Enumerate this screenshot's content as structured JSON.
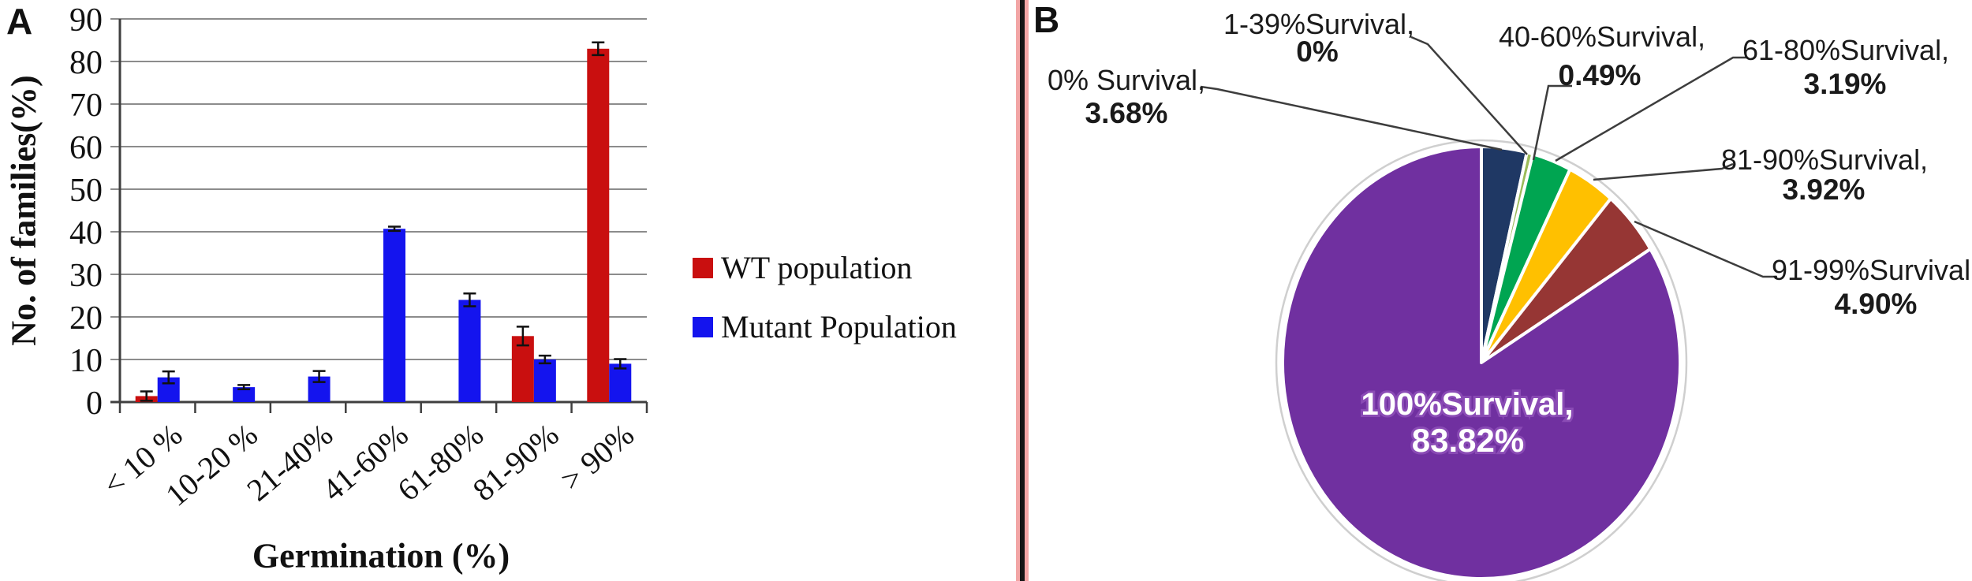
{
  "figure": {
    "panel_a": {
      "label": "A",
      "chart_data": {
        "type": "bar",
        "xlabel": "Germination  (%)",
        "ylabel": "No. of families(%)",
        "ylim": [
          0,
          90
        ],
        "ytick_step": 10,
        "grid": true,
        "legend_position": "right",
        "categories": [
          "< 10 %",
          "10-20 %",
          "21-40%",
          "41-60%",
          "61-80%",
          "81-90%",
          "> 90%"
        ],
        "series": [
          {
            "name": "WT population",
            "color": "#c90f0f",
            "values": [
              1.4,
              0,
              0,
              0,
              0,
              15.5,
              83
            ],
            "errors": [
              1.1,
              0,
              0,
              0,
              0,
              2.2,
              1.5
            ]
          },
          {
            "name": "Mutant Population",
            "color": "#1414ee",
            "values": [
              5.8,
              3.5,
              6,
              40.7,
              24,
              10,
              9
            ],
            "errors": [
              1.4,
              0.5,
              1.3,
              0.5,
              1.5,
              0.9,
              1.1
            ]
          }
        ]
      }
    },
    "panel_b": {
      "label": "B",
      "chart_data": {
        "type": "pie",
        "start_angle_deg": 0,
        "direction": "clockwise",
        "slices": [
          {
            "label": "0% Survival",
            "display": "3.68%",
            "value": 3.68,
            "color": "#1f3864"
          },
          {
            "label": "1-39%Survival",
            "display": "0%",
            "value": 0,
            "color": "#9bbb59"
          },
          {
            "label": "40-60%Survival",
            "display": "0.49%",
            "value": 0.49,
            "color": "#9bbb59"
          },
          {
            "label": "61-80%Survival",
            "display": "3.19%",
            "value": 3.19,
            "color": "#00a551"
          },
          {
            "label": "81-90%Survival",
            "display": "3.92%",
            "value": 3.92,
            "color": "#ffc000"
          },
          {
            "label": "91-99%Survival",
            "display": "4.90%",
            "value": 4.9,
            "color": "#963634"
          },
          {
            "label": "100%Survival",
            "display": "83.82%",
            "value": 83.82,
            "color": "#7030a0"
          }
        ]
      }
    },
    "divider": {
      "band_color": "#f2a5a5",
      "line_color": "#141414"
    },
    "colors": {
      "grid": "#8c8c8c",
      "axis": "#3f3f3f",
      "error_bar": "#111111",
      "leader_line": "#3d3d3d",
      "background": "#ffffff",
      "pie_ring": "#cfcfcf",
      "pie_label_text": "#1a1a1a",
      "pie_inner_text": "#ffffff"
    }
  }
}
